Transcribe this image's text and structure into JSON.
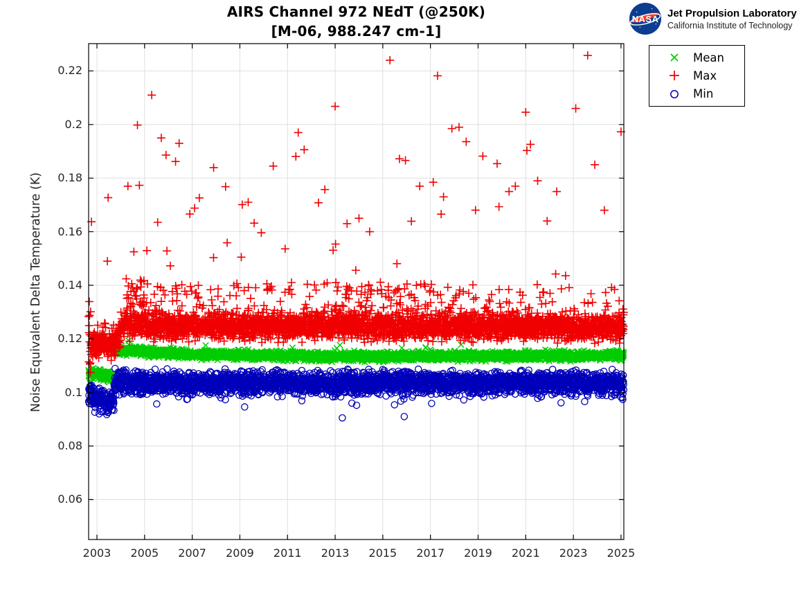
{
  "header": {
    "title_line1": "AIRS Channel 972 NEdT (@250K)",
    "title_line2": "[M-06, 988.247 cm-1]",
    "logo": {
      "org": "NASA",
      "name": "Jet Propulsion Laboratory",
      "sub": "California Institute of Technology",
      "nasa_blue": "#0b3d91",
      "nasa_red": "#fc3d21"
    }
  },
  "legend": {
    "items": [
      {
        "label": "Mean",
        "marker": "x",
        "color": "#00cc00"
      },
      {
        "label": "Max",
        "marker": "plus",
        "color": "#f00000"
      },
      {
        "label": "Min",
        "marker": "circle",
        "color": "#0000bb"
      }
    ]
  },
  "chart_data": {
    "type": "scatter",
    "title": "AIRS Channel 972 NEdT (@250K) [M-06, 988.247 cm-1]",
    "xlabel": "",
    "ylabel": "Noise Equivalent Delta Temperature (K)",
    "x_ticks": [
      2003,
      2005,
      2007,
      2009,
      2011,
      2013,
      2015,
      2017,
      2019,
      2021,
      2023,
      2025
    ],
    "x_tick_labels": [
      "2003",
      "2005",
      "2007",
      "2009",
      "2011",
      "2013",
      "2015",
      "2017",
      "2019",
      "2021",
      "2023",
      "2025"
    ],
    "y_ticks": [
      0.06,
      0.08,
      0.1,
      0.12,
      0.14,
      0.16,
      0.18,
      0.2,
      0.22
    ],
    "y_tick_labels": [
      "0.06",
      "0.08",
      "0.1",
      "0.12",
      "0.14",
      "0.16",
      "0.18",
      "0.2",
      "0.22"
    ],
    "xlim": [
      2002.651,
      2025.118
    ],
    "ylim": [
      0.0451,
      0.2302
    ],
    "grid": true,
    "grid_color": "#dcdcdc",
    "axis_color": "#000000",
    "tick_label_color": "#262626",
    "legend_position": "outside-top-right",
    "layout": {
      "plot_left": 128,
      "plot_top": 63,
      "plot_right": 901,
      "plot_bottom": 779
    },
    "sample_step_years": 0.0068,
    "series": [
      {
        "name": "Mean",
        "marker": "x",
        "color": "#00cc00",
        "band_segments": [
          {
            "t": [
              2002.651,
              2002.78
            ],
            "c": [
              0.1068,
              0.1068
            ],
            "sd": 0.0018
          },
          {
            "t": [
              2002.78,
              2003.78
            ],
            "c": [
              0.1072,
              0.1057
            ],
            "sd": 0.0009
          },
          {
            "t": [
              2003.78,
              2004.0
            ],
            "c": [
              0.115,
              0.1158
            ],
            "sd": 0.0009
          },
          {
            "t": [
              2004.0,
              2007.0
            ],
            "c": [
              0.1157,
              0.1142
            ],
            "sd": 0.0008
          },
          {
            "t": [
              2007.0,
              2013.0
            ],
            "c": [
              0.1142,
              0.1134
            ],
            "sd": 0.0008
          },
          {
            "t": [
              2013.0,
              2025.118
            ],
            "c": [
              0.1134,
              0.1137
            ],
            "sd": 0.0008
          }
        ],
        "fringes": [
          {
            "t": [
              2004.0,
              2025.118
            ],
            "rate": 0.005,
            "sign": 1,
            "dv": [
              0.0015,
              0.0045
            ],
            "pow": 1.5
          }
        ],
        "outliers": [
          [
            2009.35,
            0.116
          ],
          [
            2012.0,
            0.115
          ],
          [
            2013.2,
            0.1177
          ],
          [
            2013.8,
            0.1156
          ],
          [
            2014.3,
            0.1148
          ],
          [
            2015.8,
            0.1166
          ],
          [
            2016.5,
            0.1152
          ],
          [
            2017.0,
            0.116
          ]
        ]
      },
      {
        "name": "Max",
        "marker": "plus",
        "color": "#f00000",
        "band_segments": [
          {
            "t": [
              2002.651,
              2002.75
            ],
            "c": [
              0.121,
              0.12
            ],
            "sd": 0.009
          },
          {
            "t": [
              2002.75,
              2003.78
            ],
            "c": [
              0.1185,
              0.1175
            ],
            "sd": 0.0022
          },
          {
            "t": [
              2003.78,
              2004.05
            ],
            "c": [
              0.1185,
              0.1248
            ],
            "sd": 0.0028
          },
          {
            "t": [
              2004.05,
              2025.118
            ],
            "c": [
              0.1248,
              0.1243
            ],
            "sd": 0.0023
          }
        ],
        "fringes": [
          {
            "t": [
              2004.15,
              2005.8
            ],
            "rate": 0.2,
            "sign": 1,
            "dv": [
              0.0035,
              0.018
            ],
            "pow": 1.5
          },
          {
            "t": [
              2013.0,
              2016.5
            ],
            "rate": 0.13,
            "sign": 1,
            "dv": [
              0.0035,
              0.016
            ],
            "pow": 1.4
          },
          {
            "t": [
              2004.05,
              2025.118
            ],
            "rate": 0.08,
            "sign": 1,
            "dv": [
              0.0035,
              0.016
            ],
            "pow": 1.4
          },
          {
            "t": [
              2003.0,
              2003.78
            ],
            "rate": 0.06,
            "sign": 1,
            "dv": [
              0.003,
              0.008
            ],
            "pow": 1.2
          },
          {
            "t": [
              2004.2,
              2006.2
            ],
            "rate": 0.022,
            "sign": 1,
            "dv": [
              0.013,
              0.065
            ],
            "pow": 2.3
          },
          {
            "t": [
              2004.05,
              2025.118
            ],
            "rate": 0.014,
            "sign": 1,
            "dv": [
              0.013,
              0.062
            ],
            "pow": 2.3
          }
        ],
        "outliers": [
          [
            2002.77,
            0.1637
          ],
          [
            2003.44,
            0.149
          ],
          [
            2003.47,
            0.1727
          ],
          [
            2004.3,
            0.177
          ],
          [
            2004.55,
            0.1525
          ],
          [
            2004.7,
            0.1998
          ],
          [
            2005.3,
            0.211
          ],
          [
            2005.55,
            0.1635
          ],
          [
            2005.7,
            0.195
          ],
          [
            2005.9,
            0.1886
          ],
          [
            2006.3,
            0.1862
          ],
          [
            2006.45,
            0.193
          ],
          [
            2006.9,
            0.1666
          ],
          [
            2007.1,
            0.1688
          ],
          [
            2007.3,
            0.1726
          ],
          [
            2007.9,
            0.1839
          ],
          [
            2008.4,
            0.1768
          ],
          [
            2009.1,
            0.1701
          ],
          [
            2009.35,
            0.171
          ],
          [
            2009.6,
            0.1632
          ],
          [
            2009.9,
            0.1596
          ],
          [
            2010.4,
            0.1845
          ],
          [
            2010.9,
            0.1536
          ],
          [
            2011.35,
            0.1881
          ],
          [
            2011.45,
            0.197
          ],
          [
            2011.7,
            0.1906
          ],
          [
            2012.3,
            0.1708
          ],
          [
            2013.0,
            0.2068
          ],
          [
            2013.5,
            0.163
          ],
          [
            2014.0,
            0.165
          ],
          [
            2014.45,
            0.16
          ],
          [
            2015.3,
            0.224
          ],
          [
            2015.7,
            0.1872
          ],
          [
            2015.95,
            0.1866
          ],
          [
            2016.2,
            0.1639
          ],
          [
            2016.55,
            0.177
          ],
          [
            2017.3,
            0.2182
          ],
          [
            2017.55,
            0.173
          ],
          [
            2017.9,
            0.1985
          ],
          [
            2018.2,
            0.199
          ],
          [
            2018.5,
            0.1936
          ],
          [
            2019.2,
            0.1882
          ],
          [
            2019.8,
            0.1854
          ],
          [
            2020.3,
            0.175
          ],
          [
            2021.0,
            0.2046
          ],
          [
            2021.05,
            0.1903
          ],
          [
            2021.2,
            0.1926
          ],
          [
            2021.5,
            0.179
          ],
          [
            2021.9,
            0.164
          ],
          [
            2022.3,
            0.175
          ],
          [
            2023.1,
            0.206
          ],
          [
            2023.6,
            0.2258
          ],
          [
            2023.9,
            0.185
          ],
          [
            2024.3,
            0.168
          ],
          [
            2025.0,
            0.1973
          ]
        ]
      },
      {
        "name": "Min",
        "marker": "circle",
        "color": "#0000bb",
        "band_segments": [
          {
            "t": [
              2002.651,
              2002.78
            ],
            "c": [
              0.1005,
              0.1
            ],
            "sd": 0.003
          },
          {
            "t": [
              2002.78,
              2003.3
            ],
            "c": [
              0.0985,
              0.0968
            ],
            "sd": 0.0021
          },
          {
            "t": [
              2003.3,
              2003.72
            ],
            "c": [
              0.0968,
              0.0952
            ],
            "sd": 0.0019
          },
          {
            "t": [
              2003.72,
              2004.1
            ],
            "c": [
              0.1038,
              0.1038
            ],
            "sd": 0.0022
          },
          {
            "t": [
              2004.1,
              2025.118
            ],
            "c": [
              0.1036,
              0.1034
            ],
            "sd": 0.002
          }
        ],
        "fringes": [
          {
            "t": [
              2003.0,
              2003.72
            ],
            "rate": 0.06,
            "sign": -1,
            "dv": [
              0.002,
              0.005
            ],
            "pow": 1.5
          },
          {
            "t": [
              2004.1,
              2025.118
            ],
            "rate": 0.012,
            "sign": -1,
            "dv": [
              0.004,
              0.009
            ],
            "pow": 2.0
          }
        ],
        "outliers": [
          [
            2006.8,
            0.0975
          ],
          [
            2008.2,
            0.098
          ],
          [
            2009.2,
            0.0946
          ],
          [
            2011.6,
            0.0969
          ],
          [
            2013.3,
            0.0905
          ],
          [
            2013.7,
            0.096
          ],
          [
            2013.9,
            0.0952
          ],
          [
            2015.9,
            0.091
          ],
          [
            2018.4,
            0.0972
          ],
          [
            2021.5,
            0.0978
          ],
          [
            2024.6,
            0.0985
          ]
        ]
      }
    ]
  }
}
